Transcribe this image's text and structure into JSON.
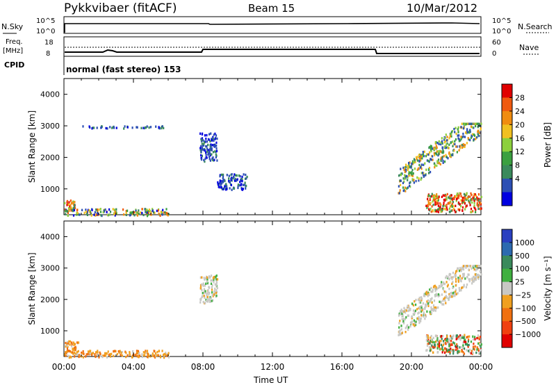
{
  "header": {
    "station": "Pykkvibaer (fitACF)",
    "beam": "Beam 15",
    "date": "10/Mar/2012"
  },
  "status_panels": {
    "nsky": {
      "label": "N.Sky",
      "right_label": "N.Search",
      "left_ticks": [
        "10^5",
        "10^0"
      ],
      "right_ticks": [
        "10^5",
        "10^0"
      ]
    },
    "freq": {
      "label_lines": [
        "Freq.",
        "[MHz]"
      ],
      "right_label": "Nave",
      "left_ticks": [
        "18",
        "8"
      ],
      "right_ticks": [
        "60",
        "0"
      ]
    },
    "cpid": {
      "label": "CPID",
      "text": "normal (fast stereo) 153"
    }
  },
  "colors": {
    "power_scale": [
      "#0000e0",
      "#2c4fb4",
      "#3a8a5c",
      "#3aa040",
      "#8cd03c",
      "#f0c020",
      "#f08c10",
      "#f05a10",
      "#e00000"
    ],
    "velocity_scale": [
      "#2a3fc0",
      "#2c6ab0",
      "#3a8a5c",
      "#40b040",
      "#c8c8c4",
      "#f0a020",
      "#f07010",
      "#f04010",
      "#e00000"
    ]
  },
  "chart_data": [
    {
      "type": "heatmap",
      "name": "power",
      "ylabel": "Slant Range [km]",
      "colorbar_label": "Power [dB]",
      "colorbar_ticks": [
        "28",
        "24",
        "20",
        "16",
        "12",
        "8",
        "4"
      ],
      "ylim": [
        180,
        4500
      ],
      "yticks": [
        "1000",
        "2000",
        "3000",
        "4000"
      ],
      "xlim": [
        0,
        24
      ],
      "regions": [
        {
          "x": [
            0.0,
            0.6
          ],
          "y": [
            300,
            700
          ],
          "level": "mixed-high"
        },
        {
          "x": [
            0.0,
            6.0
          ],
          "y": [
            180,
            400
          ],
          "level": "mixed"
        },
        {
          "x": [
            1.0,
            6.0
          ],
          "y": [
            2950,
            3020
          ],
          "level": "low"
        },
        {
          "x": [
            7.8,
            8.8
          ],
          "y": [
            1900,
            2800
          ],
          "level": "low"
        },
        {
          "x": [
            8.8,
            10.5
          ],
          "y": [
            1000,
            1500
          ],
          "level": "low"
        },
        {
          "x": [
            19.2,
            24.0
          ],
          "y": [
            900,
            3100
          ],
          "level": "mid"
        },
        {
          "x": [
            20.8,
            24.0
          ],
          "y": [
            300,
            900
          ],
          "level": "high"
        }
      ]
    },
    {
      "type": "heatmap",
      "name": "velocity",
      "ylabel": "Slant Range [km]",
      "colorbar_label": "Velocity [m s⁻¹]",
      "colorbar_ticks": [
        "1000",
        "500",
        "100",
        "25",
        "−25",
        "−100",
        "−500",
        "−1000"
      ],
      "ylim": [
        180,
        4500
      ],
      "yticks": [
        "1000",
        "2000",
        "3000",
        "4000"
      ],
      "xlim": [
        0,
        24
      ],
      "xticks": [
        "00:00",
        "04:00",
        "08:00",
        "12:00",
        "16:00",
        "20:00",
        "00:00"
      ],
      "xlabel": "Time UT",
      "regions": [
        {
          "x": [
            0.0,
            0.8
          ],
          "y": [
            300,
            700
          ],
          "level": "negative"
        },
        {
          "x": [
            0.0,
            6.0
          ],
          "y": [
            180,
            400
          ],
          "level": "negative"
        },
        {
          "x": [
            7.8,
            8.8
          ],
          "y": [
            1900,
            2800
          ],
          "level": "near-zero"
        },
        {
          "x": [
            19.2,
            24.0
          ],
          "y": [
            900,
            3100
          ],
          "level": "near-zero"
        },
        {
          "x": [
            20.8,
            24.0
          ],
          "y": [
            300,
            900
          ],
          "level": "mixed"
        }
      ]
    }
  ]
}
